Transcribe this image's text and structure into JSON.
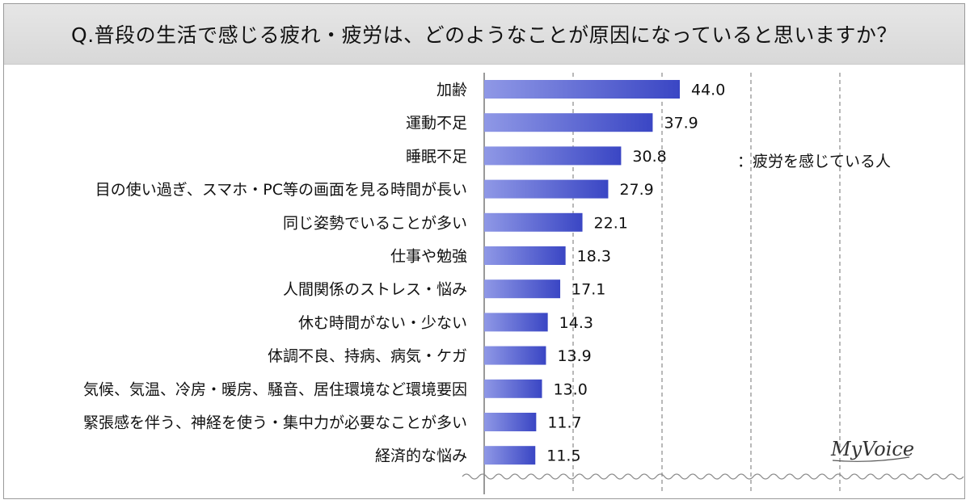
{
  "title": "Q.普段の生活で感じる疲れ・疲労は、どのようなことが原因になっていると思いますか？",
  "legend": "：疲労を感じている人",
  "logo": "MyVoice",
  "colors": {
    "bar_start": "#8f98e6",
    "bar_end": "#3a46c4",
    "grid": "#8a8a8a"
  },
  "chart_data": {
    "type": "bar",
    "orientation": "horizontal",
    "categories": [
      "加齢",
      "運動不足",
      "睡眠不足",
      "目の使い過ぎ、スマホ・PC等の画面を見る時間が長い",
      "同じ姿勢でいることが多い",
      "仕事や勉強",
      "人間関係のストレス・悩み",
      "休む時間がない・少ない",
      "体調不良、持病、病気・ケガ",
      "気候、気温、冷房・暖房、騒音、居住環境など環境要因",
      "緊張感を伴う、神経を使う・集中力が必要なことが多い",
      "経済的な悩み"
    ],
    "series": [
      {
        "name": "疲労を感じている人",
        "values": [
          44.0,
          37.9,
          30.8,
          27.9,
          22.1,
          18.3,
          17.1,
          14.3,
          13.9,
          13.0,
          11.7,
          11.5
        ],
        "labels": [
          "44.0",
          "37.9",
          "30.8",
          "27.9",
          "22.1",
          "18.3",
          "17.1",
          "14.3",
          "13.9",
          "13.0",
          "11.7",
          "11.5"
        ]
      }
    ],
    "xlim": [
      0,
      100
    ],
    "grid_lines": [
      20,
      40,
      60,
      80
    ],
    "grid": true,
    "legend_position": "right"
  }
}
